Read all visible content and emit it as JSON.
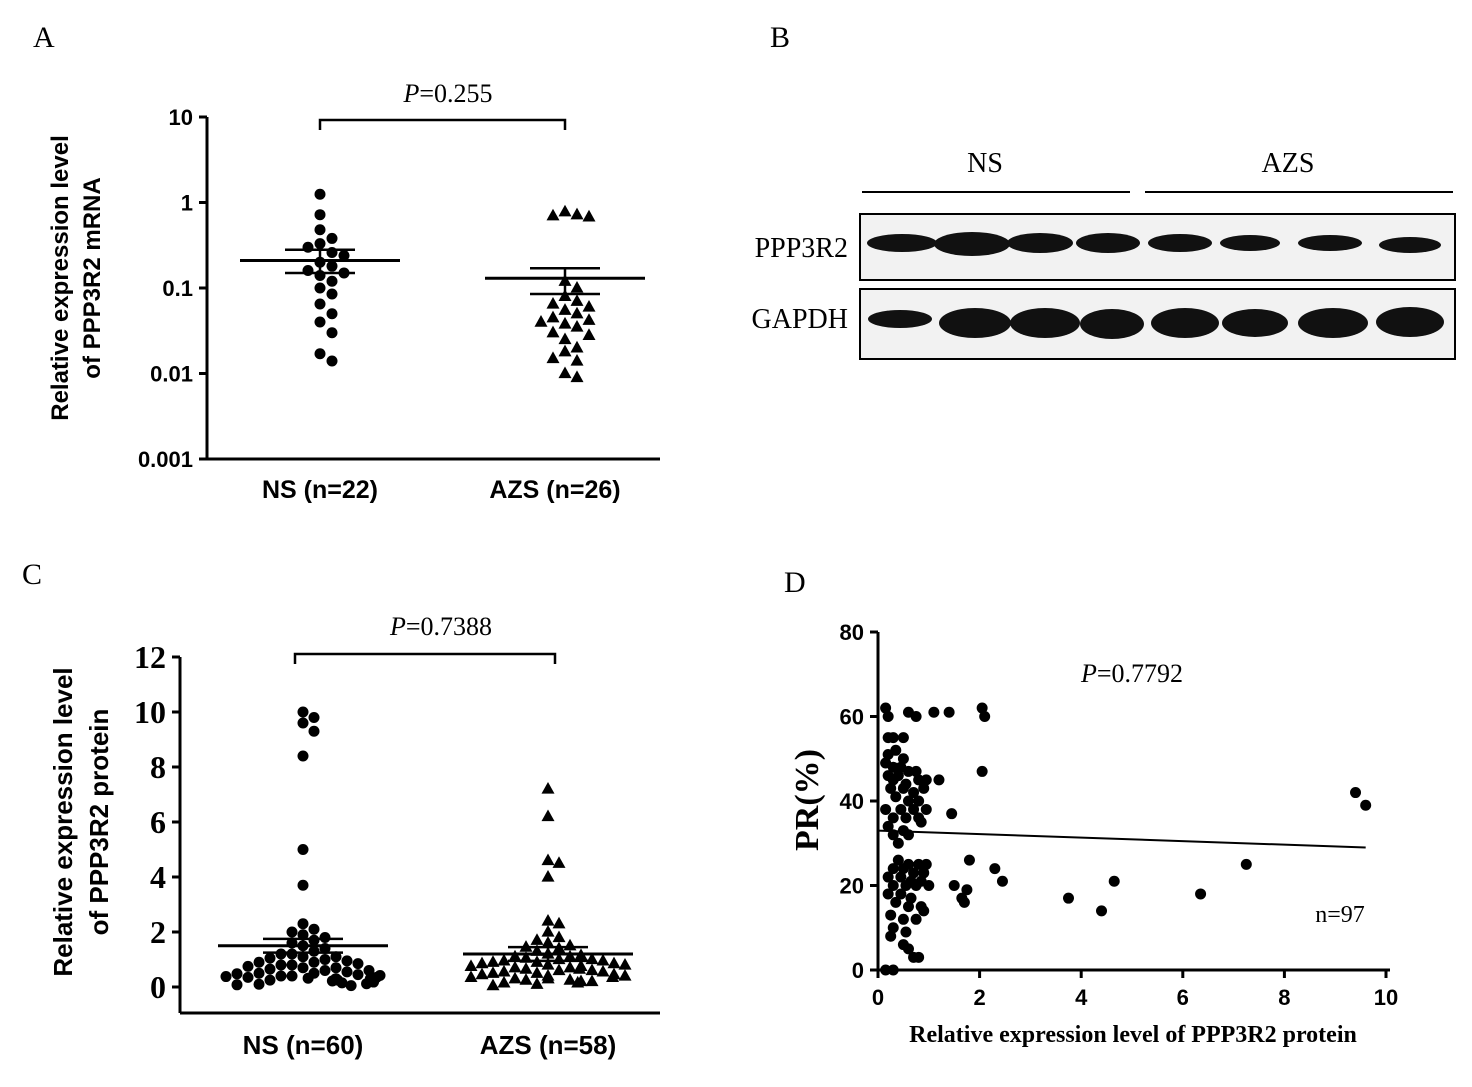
{
  "panels": {
    "A": {
      "letter": "A"
    },
    "B": {
      "letter": "B"
    },
    "C": {
      "letter": "C"
    },
    "D": {
      "letter": "D"
    }
  },
  "chart_data": [
    {
      "panel": "A",
      "type": "scatter",
      "yscale": "log",
      "ylabel_line1": "Relative expression level",
      "ylabel_line2": "of PPP3R2 mRNA",
      "ylim": [
        0.001,
        10
      ],
      "yticks": [
        "0.001",
        "0.01",
        "0.1",
        "1",
        "10"
      ],
      "categories": [
        "NS (n=22)",
        "AZS (n=26)"
      ],
      "p_label": "P",
      "p_value": "=0.255",
      "series": [
        {
          "marker": "circle",
          "mean": 0.21,
          "sem_low": 0.15,
          "sem_high": 0.28,
          "values": [
            1.25,
            0.72,
            0.48,
            0.38,
            0.33,
            0.3,
            0.26,
            0.24,
            0.2,
            0.18,
            0.16,
            0.15,
            0.14,
            0.12,
            0.1,
            0.085,
            0.065,
            0.05,
            0.04,
            0.03,
            0.017,
            0.014
          ]
        },
        {
          "marker": "triangle",
          "mean": 0.13,
          "sem_low": 0.085,
          "sem_high": 0.17,
          "values": [
            0.78,
            0.72,
            0.7,
            0.68,
            0.12,
            0.1,
            0.08,
            0.07,
            0.065,
            0.06,
            0.055,
            0.05,
            0.045,
            0.042,
            0.04,
            0.038,
            0.035,
            0.03,
            0.028,
            0.025,
            0.02,
            0.018,
            0.015,
            0.014,
            0.01,
            0.009
          ]
        }
      ]
    },
    {
      "panel": "B",
      "type": "blot",
      "groups": [
        "NS",
        "AZS"
      ],
      "rows": [
        "PPP3R2",
        "GAPDH"
      ]
    },
    {
      "panel": "C",
      "type": "scatter",
      "ylabel_line1": "Relative expression level",
      "ylabel_line2": "of PPP3R2 protein",
      "ylim": [
        0,
        12
      ],
      "yticks": [
        "0",
        "2",
        "4",
        "6",
        "8",
        "10",
        "12"
      ],
      "categories": [
        "NS (n=60)",
        "AZS (n=58)"
      ],
      "p_label": "P",
      "p_value": "=0.7388",
      "series": [
        {
          "marker": "circle",
          "mean": 1.5,
          "sem_low": 1.25,
          "sem_high": 1.75,
          "values": [
            10.0,
            9.8,
            9.6,
            9.3,
            8.4,
            5.0,
            3.7,
            2.3,
            2.1,
            2.0,
            1.9,
            1.8,
            1.7,
            1.6,
            1.5,
            1.4,
            1.3,
            1.2,
            1.1,
            1.05,
            1.0,
            0.95,
            0.9,
            0.85,
            0.8,
            0.75,
            0.7,
            0.65,
            0.6,
            0.55,
            0.5,
            0.48,
            0.45,
            0.42,
            0.4,
            0.38,
            0.35,
            0.32,
            0.3,
            0.28,
            0.25,
            0.22,
            0.2,
            0.18,
            0.15,
            0.12,
            0.1,
            0.08,
            0.05,
            0.6,
            0.7,
            0.9,
            1.1,
            0.4,
            0.3,
            0.5,
            0.8,
            1.2,
            0.25,
            0.35
          ]
        },
        {
          "marker": "triangle",
          "mean": 1.2,
          "sem_low": 0.95,
          "sem_high": 1.45,
          "values": [
            7.2,
            6.2,
            4.6,
            4.5,
            4.0,
            2.4,
            2.3,
            2.0,
            1.8,
            1.7,
            1.6,
            1.5,
            1.45,
            1.4,
            1.3,
            1.2,
            1.1,
            1.05,
            1.0,
            0.95,
            0.9,
            0.85,
            0.8,
            0.75,
            0.7,
            0.65,
            0.6,
            0.55,
            0.5,
            0.45,
            0.4,
            0.35,
            0.3,
            0.25,
            0.2,
            0.15,
            0.1,
            0.05,
            0.3,
            0.5,
            0.7,
            0.9,
            1.1,
            0.4,
            0.6,
            0.8,
            1.0,
            0.2,
            0.35,
            0.55,
            0.75,
            0.95,
            1.15,
            0.45,
            0.65,
            0.85,
            0.25,
            0.15
          ]
        }
      ]
    },
    {
      "panel": "D",
      "type": "scatter",
      "xlabel": "Relative expression level of PPP3R2 protein",
      "ylabel": "PR(%)",
      "xlim": [
        0,
        10
      ],
      "ylim": [
        0,
        80
      ],
      "xticks": [
        "0",
        "2",
        "4",
        "6",
        "8",
        "10"
      ],
      "yticks": [
        "0",
        "20",
        "40",
        "60",
        "80"
      ],
      "p_label": "P",
      "p_value": "=0.7792",
      "n_label": "n=97",
      "regression": {
        "x": [
          0,
          9.6
        ],
        "y": [
          33,
          29
        ]
      },
      "points": [
        [
          0.15,
          62
        ],
        [
          0.2,
          60
        ],
        [
          0.6,
          61
        ],
        [
          0.75,
          60
        ],
        [
          1.1,
          61
        ],
        [
          1.4,
          61
        ],
        [
          2.05,
          62
        ],
        [
          2.1,
          60
        ],
        [
          0.2,
          55
        ],
        [
          0.3,
          55
        ],
        [
          0.5,
          55
        ],
        [
          0.2,
          51
        ],
        [
          0.35,
          52
        ],
        [
          0.5,
          50
        ],
        [
          0.15,
          49
        ],
        [
          0.3,
          48
        ],
        [
          0.45,
          48
        ],
        [
          0.2,
          46
        ],
        [
          0.4,
          46
        ],
        [
          0.6,
          47
        ],
        [
          0.75,
          47
        ],
        [
          2.05,
          47
        ],
        [
          0.3,
          45
        ],
        [
          0.55,
          44
        ],
        [
          0.8,
          45
        ],
        [
          0.95,
          45
        ],
        [
          1.2,
          45
        ],
        [
          0.25,
          43
        ],
        [
          0.5,
          43
        ],
        [
          0.7,
          42
        ],
        [
          0.9,
          43
        ],
        [
          0.35,
          41
        ],
        [
          0.6,
          40
        ],
        [
          0.8,
          40
        ],
        [
          9.4,
          42
        ],
        [
          9.6,
          39
        ],
        [
          0.15,
          38
        ],
        [
          0.45,
          38
        ],
        [
          0.7,
          38
        ],
        [
          0.95,
          38
        ],
        [
          1.45,
          37
        ],
        [
          0.3,
          36
        ],
        [
          0.55,
          36
        ],
        [
          0.8,
          36
        ],
        [
          0.2,
          34
        ],
        [
          0.5,
          33
        ],
        [
          0.85,
          35
        ],
        [
          0.3,
          32
        ],
        [
          0.6,
          32
        ],
        [
          0.4,
          26
        ],
        [
          0.6,
          25
        ],
        [
          0.8,
          25
        ],
        [
          0.95,
          25
        ],
        [
          1.8,
          26
        ],
        [
          0.3,
          24
        ],
        [
          0.5,
          24
        ],
        [
          0.7,
          23
        ],
        [
          0.9,
          23
        ],
        [
          2.3,
          24
        ],
        [
          0.2,
          22
        ],
        [
          0.45,
          22
        ],
        [
          0.65,
          21
        ],
        [
          0.85,
          21
        ],
        [
          2.45,
          21
        ],
        [
          4.65,
          21
        ],
        [
          0.3,
          20
        ],
        [
          0.55,
          20
        ],
        [
          0.75,
          20
        ],
        [
          1.0,
          20
        ],
        [
          1.5,
          20
        ],
        [
          1.75,
          19
        ],
        [
          0.2,
          18
        ],
        [
          0.45,
          18
        ],
        [
          0.65,
          17
        ],
        [
          1.65,
          17
        ],
        [
          3.75,
          17
        ],
        [
          6.35,
          18
        ],
        [
          7.25,
          25
        ],
        [
          0.35,
          16
        ],
        [
          0.6,
          15
        ],
        [
          0.85,
          15
        ],
        [
          1.7,
          16
        ],
        [
          4.4,
          14
        ],
        [
          0.25,
          13
        ],
        [
          0.5,
          12
        ],
        [
          0.75,
          12
        ],
        [
          0.3,
          10
        ],
        [
          0.55,
          9
        ],
        [
          0.25,
          8
        ],
        [
          0.5,
          6
        ],
        [
          0.6,
          5
        ],
        [
          0.7,
          3
        ],
        [
          0.8,
          3
        ],
        [
          0.15,
          0
        ],
        [
          0.3,
          0
        ],
        [
          0.9,
          14
        ],
        [
          0.4,
          30
        ]
      ]
    }
  ]
}
